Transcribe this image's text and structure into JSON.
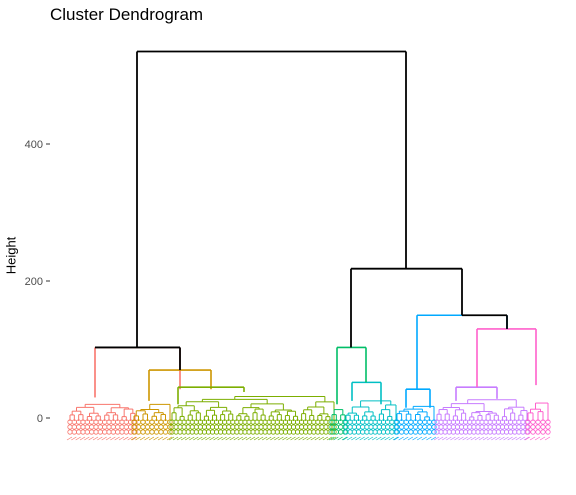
{
  "chart_data": {
    "type": "dendrogram",
    "title": "Cluster Dendrogram",
    "ylabel": "Height",
    "xlabel": "",
    "y_ticks": [
      0,
      200,
      400
    ],
    "ylim": [
      0,
      540
    ],
    "grid": false,
    "clusters": [
      {
        "name": "",
        "color": "#F8766D",
        "merge_height": 0
      },
      {
        "name": "",
        "color": "#CD9600",
        "merge_height": 0
      },
      {
        "name": "",
        "color": "#7CAE00",
        "merge_height": 0
      },
      {
        "name": "",
        "color": "#00BE67",
        "merge_height": 0
      },
      {
        "name": "",
        "color": "#00BFC4",
        "merge_height": 0
      },
      {
        "name": "",
        "color": "#00A9FF",
        "merge_height": 0
      },
      {
        "name": "",
        "color": "#C77CFF",
        "merge_height": 0
      },
      {
        "name": "",
        "color": "#FF61CC",
        "merge_height": 0
      }
    ],
    "top_merges": [
      {
        "height": 535,
        "description": "root"
      },
      {
        "height": 218
      },
      {
        "height": 150
      },
      {
        "height": 103
      },
      {
        "height": 103
      },
      {
        "height": 70
      }
    ]
  }
}
